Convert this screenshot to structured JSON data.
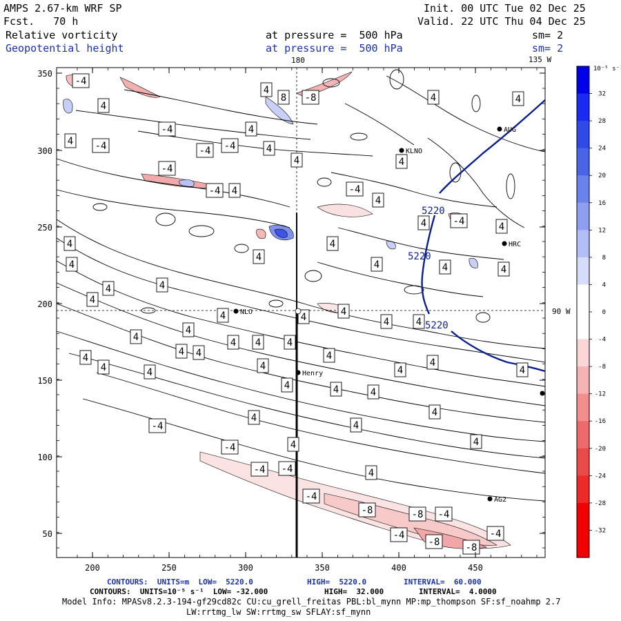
{
  "header": {
    "model": "AMPS 2.67-km WRF SP",
    "fcst": "Fcst.   70 h",
    "init": "Init. 00 UTC Tue 02 Dec 25",
    "valid": "Valid. 22 UTC Thu 04 Dec 25",
    "field1_name": "Relative vorticity",
    "field1_level": "at pressure =  500 hPa",
    "field1_sm": "sm= 2",
    "field2_name": "Geopotential height",
    "field2_level": "at pressure =  500 hPa",
    "field2_sm": "sm= 2"
  },
  "map": {
    "lon_label_180": "180",
    "lon_label_135w": "135 W",
    "lon_label_90w": "90 W",
    "x_ticks": [
      "200",
      "250",
      "300",
      "350",
      "400",
      "450"
    ],
    "y_ticks": [
      "350",
      "300",
      "250",
      "200",
      "150",
      "100",
      "50"
    ],
    "height_contour_label": "5220",
    "stations": [
      {
        "name": "AUG",
        "x": 724,
        "y": 187
      },
      {
        "name": "KLNO",
        "x": 582,
        "y": 218
      },
      {
        "name": "HRC",
        "x": 731,
        "y": 353
      },
      {
        "name": "NLO",
        "x": 342,
        "y": 451
      },
      {
        "name": "Henry",
        "x": 432,
        "y": 540
      },
      {
        "name": "AG2",
        "x": 710,
        "y": 723
      },
      {
        "name": "",
        "x": 786,
        "y": 570
      }
    ],
    "contour_labels": [
      {
        "t": "-4",
        "x": 117,
        "y": 117,
        "neg": true
      },
      {
        "t": "4",
        "x": 150,
        "y": 153,
        "neg": false
      },
      {
        "t": "-4",
        "x": 242,
        "y": 187,
        "neg": true
      },
      {
        "t": "4",
        "x": 102,
        "y": 204,
        "neg": false
      },
      {
        "t": "-4",
        "x": 146,
        "y": 211,
        "neg": true
      },
      {
        "t": "-4",
        "x": 297,
        "y": 218,
        "neg": true
      },
      {
        "t": "-4",
        "x": 333,
        "y": 211,
        "neg": true
      },
      {
        "t": "4",
        "x": 364,
        "y": 187,
        "neg": false
      },
      {
        "t": "4",
        "x": 390,
        "y": 215,
        "neg": false
      },
      {
        "t": "4",
        "x": 386,
        "y": 130,
        "neg": false
      },
      {
        "t": "8",
        "x": 411,
        "y": 141,
        "neg": false
      },
      {
        "t": "-8",
        "x": 450,
        "y": 141,
        "neg": true
      },
      {
        "t": "4",
        "x": 430,
        "y": 232,
        "neg": false
      },
      {
        "t": "-4",
        "x": 242,
        "y": 244,
        "neg": true
      },
      {
        "t": "-4",
        "x": 311,
        "y": 276,
        "neg": true
      },
      {
        "t": "4",
        "x": 340,
        "y": 276,
        "neg": false
      },
      {
        "t": "4",
        "x": 582,
        "y": 234,
        "neg": false
      },
      {
        "t": "-4",
        "x": 514,
        "y": 274,
        "neg": true
      },
      {
        "t": "4",
        "x": 548,
        "y": 290,
        "neg": false
      },
      {
        "t": "4",
        "x": 628,
        "y": 141,
        "neg": false
      },
      {
        "t": "4",
        "x": 751,
        "y": 143,
        "neg": false
      },
      {
        "t": "4",
        "x": 614,
        "y": 323,
        "neg": false
      },
      {
        "t": "-4",
        "x": 665,
        "y": 320,
        "neg": true
      },
      {
        "t": "4",
        "x": 727,
        "y": 328,
        "neg": false
      },
      {
        "t": "4",
        "x": 482,
        "y": 353,
        "neg": false
      },
      {
        "t": "4",
        "x": 101,
        "y": 353,
        "neg": false
      },
      {
        "t": "4",
        "x": 104,
        "y": 383,
        "neg": false
      },
      {
        "t": "4",
        "x": 375,
        "y": 372,
        "neg": false
      },
      {
        "t": "4",
        "x": 546,
        "y": 383,
        "neg": false
      },
      {
        "t": "4",
        "x": 645,
        "y": 387,
        "neg": false
      },
      {
        "t": "4",
        "x": 730,
        "y": 390,
        "neg": false
      },
      {
        "t": "4",
        "x": 157,
        "y": 418,
        "neg": false
      },
      {
        "t": "4",
        "x": 235,
        "y": 413,
        "neg": false
      },
      {
        "t": "4",
        "x": 134,
        "y": 434,
        "neg": false
      },
      {
        "t": "4",
        "x": 498,
        "y": 451,
        "neg": false
      },
      {
        "t": "4",
        "x": 323,
        "y": 457,
        "neg": false
      },
      {
        "t": "4",
        "x": 440,
        "y": 459,
        "neg": false
      },
      {
        "t": "4",
        "x": 560,
        "y": 466,
        "neg": false
      },
      {
        "t": "4",
        "x": 607,
        "y": 466,
        "neg": false
      },
      {
        "t": "4",
        "x": 273,
        "y": 478,
        "neg": false
      },
      {
        "t": "4",
        "x": 197,
        "y": 488,
        "neg": false
      },
      {
        "t": "4",
        "x": 338,
        "y": 496,
        "neg": false
      },
      {
        "t": "4",
        "x": 374,
        "y": 496,
        "neg": false
      },
      {
        "t": "4",
        "x": 420,
        "y": 496,
        "neg": false
      },
      {
        "t": "4",
        "x": 263,
        "y": 509,
        "neg": false
      },
      {
        "t": "4",
        "x": 288,
        "y": 511,
        "neg": false
      },
      {
        "t": "4",
        "x": 124,
        "y": 518,
        "neg": false
      },
      {
        "t": "4",
        "x": 477,
        "y": 515,
        "neg": false
      },
      {
        "t": "4",
        "x": 627,
        "y": 525,
        "neg": false
      },
      {
        "t": "4",
        "x": 150,
        "y": 532,
        "neg": false
      },
      {
        "t": "4",
        "x": 381,
        "y": 530,
        "neg": false
      },
      {
        "t": "4",
        "x": 580,
        "y": 536,
        "neg": false
      },
      {
        "t": "4",
        "x": 757,
        "y": 536,
        "neg": false
      },
      {
        "t": "4",
        "x": 217,
        "y": 539,
        "neg": false
      },
      {
        "t": "4",
        "x": 416,
        "y": 558,
        "neg": false
      },
      {
        "t": "4",
        "x": 487,
        "y": 564,
        "neg": false
      },
      {
        "t": "4",
        "x": 541,
        "y": 568,
        "neg": false
      },
      {
        "t": "4",
        "x": 630,
        "y": 597,
        "neg": false
      },
      {
        "t": "4",
        "x": 368,
        "y": 605,
        "neg": false
      },
      {
        "t": "-4",
        "x": 228,
        "y": 617,
        "neg": true
      },
      {
        "t": "4",
        "x": 516,
        "y": 616,
        "neg": false
      },
      {
        "t": "4",
        "x": 690,
        "y": 640,
        "neg": false
      },
      {
        "t": "-4",
        "x": 333,
        "y": 648,
        "neg": true
      },
      {
        "t": "4",
        "x": 425,
        "y": 644,
        "neg": false
      },
      {
        "t": "-4",
        "x": 376,
        "y": 680,
        "neg": true
      },
      {
        "t": "-4",
        "x": 416,
        "y": 679,
        "neg": true
      },
      {
        "t": "4",
        "x": 538,
        "y": 685,
        "neg": false
      },
      {
        "t": "-4",
        "x": 451,
        "y": 719,
        "neg": true
      },
      {
        "t": "-8",
        "x": 532,
        "y": 739,
        "neg": true
      },
      {
        "t": "-8",
        "x": 605,
        "y": 745,
        "neg": true
      },
      {
        "t": "-4",
        "x": 643,
        "y": 745,
        "neg": true
      },
      {
        "t": "-4",
        "x": 578,
        "y": 775,
        "neg": true
      },
      {
        "t": "-8",
        "x": 629,
        "y": 785,
        "neg": true
      },
      {
        "t": "-4",
        "x": 718,
        "y": 773,
        "neg": true
      },
      {
        "t": "-8",
        "x": 683,
        "y": 793,
        "neg": true
      }
    ]
  },
  "colorbar": {
    "units": "10⁻⁵ s⁻¹",
    "labels": [
      "32",
      "28",
      "24",
      "20",
      "16",
      "12",
      "8",
      "4",
      "0",
      "-4",
      "-8",
      "-12",
      "-16",
      "-20",
      "-24",
      "-28",
      "-32"
    ],
    "colors": [
      "#0000e8",
      "#1a2af0",
      "#2f4ae8",
      "#4a64e6",
      "#6a82ec",
      "#8e9ff2",
      "#b3bef6",
      "#d6dcfa",
      "#ffffff",
      "#ffffff",
      "#fad6d6",
      "#f6b3b3",
      "#f28e8e",
      "#ee6a6a",
      "#ea4a4a",
      "#ec2a2a",
      "#f00000",
      "#f00000"
    ]
  },
  "footer": {
    "line1_a": "CONTOURS:  UNITS=m  LOW=  5220.0",
    "line1_b": "HIGH=  5220.0",
    "line1_c": "INTERVAL=  60.000",
    "line2_a": "CONTOURS:  UNITS=10⁻⁵ s⁻¹  LOW= -32.000",
    "line2_b": "HIGH=  32.000",
    "line2_c": "INTERVAL=  4.0000",
    "line3": "Model Info: MPASv8.2.3-194-gf29cd82c CU:cu_grell_freitas PBL:bl_mynn MP:mp_thompson SF:sf_noahmp 2.7",
    "line4": "LW:rrtmg_lw SW:rrtmg_sw SFLAY:sf_mynn"
  }
}
